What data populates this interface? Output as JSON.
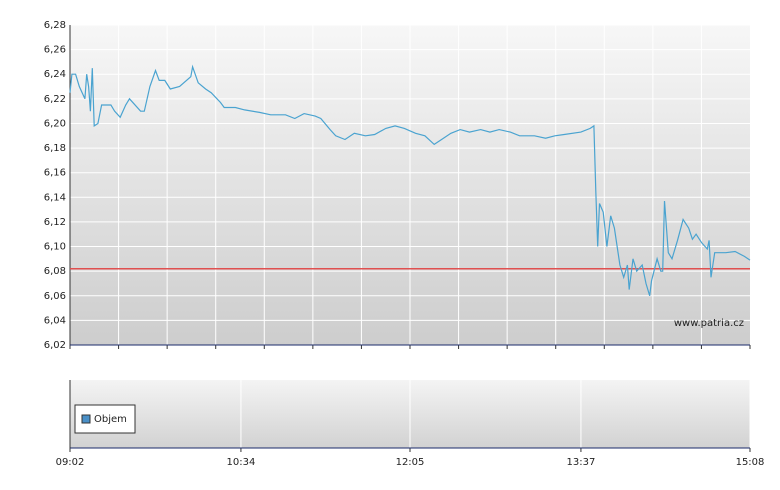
{
  "chart_data": [
    {
      "type": "line",
      "xlim": [
        542,
        908
      ],
      "x": [
        542,
        543,
        545,
        547,
        550,
        551,
        552,
        553,
        554,
        555,
        557,
        559,
        564,
        566,
        569,
        572,
        574,
        580,
        582,
        585,
        588,
        590,
        593,
        596,
        601,
        607,
        608,
        611,
        615,
        618,
        623,
        625,
        631,
        636,
        644,
        650,
        658,
        663,
        668,
        674,
        677,
        682,
        685,
        690,
        695,
        701,
        706,
        712,
        717,
        722,
        728,
        733,
        738,
        741,
        747,
        752,
        757,
        763,
        768,
        773,
        779,
        784,
        792,
        798,
        803,
        808,
        817,
        822,
        824,
        825,
        826,
        827,
        829,
        831,
        833,
        835,
        838,
        840,
        842,
        843,
        845,
        847,
        850,
        852,
        854,
        855,
        858,
        860,
        861,
        862,
        864,
        866,
        869,
        872,
        875,
        877,
        879,
        882,
        885,
        886,
        887,
        889,
        895,
        900,
        905,
        908
      ],
      "series": [
        {
          "color": "#4aa3d0",
          "values": [
            6.225,
            6.24,
            6.24,
            6.23,
            6.22,
            6.24,
            6.23,
            6.21,
            6.245,
            6.198,
            6.2,
            6.215,
            6.215,
            6.21,
            6.205,
            6.215,
            6.22,
            6.21,
            6.21,
            6.23,
            6.243,
            6.235,
            6.235,
            6.228,
            6.23,
            6.238,
            6.246,
            6.233,
            6.228,
            6.225,
            6.217,
            6.213,
            6.213,
            6.211,
            6.209,
            6.207,
            6.207,
            6.204,
            6.208,
            6.206,
            6.204,
            6.195,
            6.19,
            6.187,
            6.192,
            6.19,
            6.191,
            6.196,
            6.198,
            6.196,
            6.192,
            6.19,
            6.183,
            6.186,
            6.192,
            6.195,
            6.193,
            6.195,
            6.193,
            6.195,
            6.193,
            6.19,
            6.19,
            6.188,
            6.19,
            6.191,
            6.193,
            6.196,
            6.198,
            6.145,
            6.1,
            6.135,
            6.128,
            6.1,
            6.125,
            6.115,
            6.085,
            6.075,
            6.085,
            6.065,
            6.09,
            6.08,
            6.085,
            6.07,
            6.06,
            6.072,
            6.09,
            6.08,
            6.08,
            6.137,
            6.095,
            6.09,
            6.105,
            6.122,
            6.115,
            6.106,
            6.11,
            6.103,
            6.098,
            6.105,
            6.075,
            6.095,
            6.095,
            6.096,
            6.092,
            6.089
          ]
        }
      ],
      "ylim": [
        6.02,
        6.28
      ],
      "yticks": [
        {
          "value": 6.02,
          "label": "6,02"
        },
        {
          "value": 6.04,
          "label": "6,04"
        },
        {
          "value": 6.06,
          "label": "6,06"
        },
        {
          "value": 6.08,
          "label": "6,08"
        },
        {
          "value": 6.1,
          "label": "6,10"
        },
        {
          "value": 6.12,
          "label": "6,12"
        },
        {
          "value": 6.14,
          "label": "6,14"
        },
        {
          "value": 6.16,
          "label": "6,16"
        },
        {
          "value": 6.18,
          "label": "6,18"
        },
        {
          "value": 6.2,
          "label": "6,20"
        },
        {
          "value": 6.22,
          "label": "6,22"
        },
        {
          "value": 6.24,
          "label": "6,24"
        },
        {
          "value": 6.26,
          "label": "6,26"
        },
        {
          "value": 6.28,
          "label": "6,28"
        }
      ],
      "grid": true,
      "reference_line": {
        "value": 6.082,
        "color": "#e05050"
      },
      "watermark": "www.patria.cz"
    },
    {
      "type": "bar",
      "xlim": [
        542,
        908
      ],
      "xticks": [
        {
          "value": 542,
          "label": "09:02"
        },
        {
          "value": 634,
          "label": "10:34"
        },
        {
          "value": 725,
          "label": "12:05"
        },
        {
          "value": 817,
          "label": "13:37"
        },
        {
          "value": 908,
          "label": "15:08"
        }
      ],
      "series": [
        {
          "name": "Objem",
          "color": "#4a90c8"
        }
      ],
      "legend": "lower-left"
    }
  ]
}
